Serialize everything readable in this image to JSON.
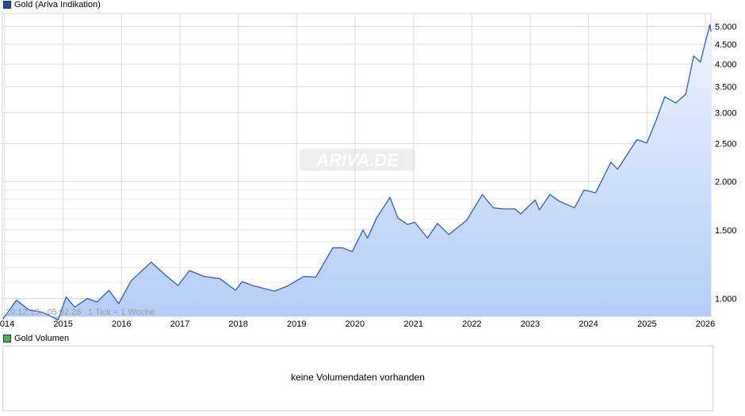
{
  "colors": {
    "line": "#2f5fbf",
    "fill_top": "#eef3fd",
    "fill_bottom": "#b5cdf7",
    "grid": "#dddddd",
    "legend_gold": "#1f4e9e",
    "legend_volume": "#4caf50"
  },
  "legend": {
    "gold_label": "Gold (Ariva Indikation)",
    "volume_label": "Gold Volumen"
  },
  "watermark": "ARIVA.DE",
  "range_text": "20.12.13 - 05.02.26",
  "tick_text": "1 Tick = 1 Woche",
  "volume_message": "keine Volumendaten vorhanden",
  "chart_data": {
    "type": "area",
    "title": "Gold (Ariva Indikation)",
    "y_scale": "log",
    "ylim": [
      900,
      5400
    ],
    "y_ticks": [
      {
        "value": 1000,
        "label": "1.000"
      },
      {
        "value": 1500,
        "label": "1.500"
      },
      {
        "value": 2000,
        "label": "2.000"
      },
      {
        "value": 2500,
        "label": "2.500"
      },
      {
        "value": 3000,
        "label": "3.000"
      },
      {
        "value": 3500,
        "label": "3.500"
      },
      {
        "value": 4000,
        "label": "4.000"
      },
      {
        "value": 4500,
        "label": "4.500"
      },
      {
        "value": 5000,
        "label": "5.000"
      }
    ],
    "x_ticks": [
      {
        "year": 2014,
        "label": "2014"
      },
      {
        "year": 2015,
        "label": "2015"
      },
      {
        "year": 2016,
        "label": "2016"
      },
      {
        "year": 2017,
        "label": "2017"
      },
      {
        "year": 2018,
        "label": "2018"
      },
      {
        "year": 2019,
        "label": "2019"
      },
      {
        "year": 2020,
        "label": "2020"
      },
      {
        "year": 2021,
        "label": "2021"
      },
      {
        "year": 2022,
        "label": "2022"
      },
      {
        "year": 2023,
        "label": "2023"
      },
      {
        "year": 2024,
        "label": "2024"
      },
      {
        "year": 2025,
        "label": "2025"
      },
      {
        "year": 2026,
        "label": "2026"
      }
    ],
    "series": [
      {
        "points": [
          [
            "2013-12-20",
            885
          ],
          [
            "2014-03-15",
            990
          ],
          [
            "2014-06-01",
            935
          ],
          [
            "2014-09-01",
            920
          ],
          [
            "2014-12-01",
            880
          ],
          [
            "2015-01-20",
            1010
          ],
          [
            "2015-03-15",
            950
          ],
          [
            "2015-06-01",
            1000
          ],
          [
            "2015-08-01",
            980
          ],
          [
            "2015-10-15",
            1050
          ],
          [
            "2015-12-15",
            970
          ],
          [
            "2016-03-01",
            1110
          ],
          [
            "2016-07-05",
            1240
          ],
          [
            "2016-10-01",
            1150
          ],
          [
            "2016-12-20",
            1080
          ],
          [
            "2017-03-01",
            1180
          ],
          [
            "2017-06-01",
            1140
          ],
          [
            "2017-09-08",
            1125
          ],
          [
            "2017-12-15",
            1050
          ],
          [
            "2018-01-25",
            1105
          ],
          [
            "2018-04-01",
            1080
          ],
          [
            "2018-08-15",
            1045
          ],
          [
            "2018-11-01",
            1075
          ],
          [
            "2019-02-15",
            1140
          ],
          [
            "2019-05-01",
            1135
          ],
          [
            "2019-08-15",
            1350
          ],
          [
            "2019-10-15",
            1350
          ],
          [
            "2019-12-15",
            1320
          ],
          [
            "2020-02-20",
            1500
          ],
          [
            "2020-03-20",
            1430
          ],
          [
            "2020-05-15",
            1610
          ],
          [
            "2020-08-07",
            1820
          ],
          [
            "2020-09-25",
            1610
          ],
          [
            "2020-11-25",
            1550
          ],
          [
            "2021-01-10",
            1570
          ],
          [
            "2021-03-30",
            1430
          ],
          [
            "2021-05-31",
            1560
          ],
          [
            "2021-08-10",
            1460
          ],
          [
            "2021-11-30",
            1590
          ],
          [
            "2022-03-08",
            1850
          ],
          [
            "2022-05-15",
            1710
          ],
          [
            "2022-07-20",
            1700
          ],
          [
            "2022-09-28",
            1700
          ],
          [
            "2022-11-03",
            1650
          ],
          [
            "2023-02-01",
            1790
          ],
          [
            "2023-02-28",
            1690
          ],
          [
            "2023-05-04",
            1850
          ],
          [
            "2023-06-30",
            1780
          ],
          [
            "2023-10-05",
            1710
          ],
          [
            "2023-12-04",
            1900
          ],
          [
            "2024-02-15",
            1870
          ],
          [
            "2024-05-20",
            2240
          ],
          [
            "2024-07-01",
            2150
          ],
          [
            "2024-10-30",
            2560
          ],
          [
            "2024-12-31",
            2510
          ],
          [
            "2025-02-24",
            2850
          ],
          [
            "2025-04-22",
            3300
          ],
          [
            "2025-06-30",
            3180
          ],
          [
            "2025-08-31",
            3350
          ],
          [
            "2025-10-20",
            4200
          ],
          [
            "2025-12-01",
            4050
          ],
          [
            "2026-01-29",
            5050
          ],
          [
            "2026-02-05",
            4850
          ]
        ]
      }
    ]
  }
}
